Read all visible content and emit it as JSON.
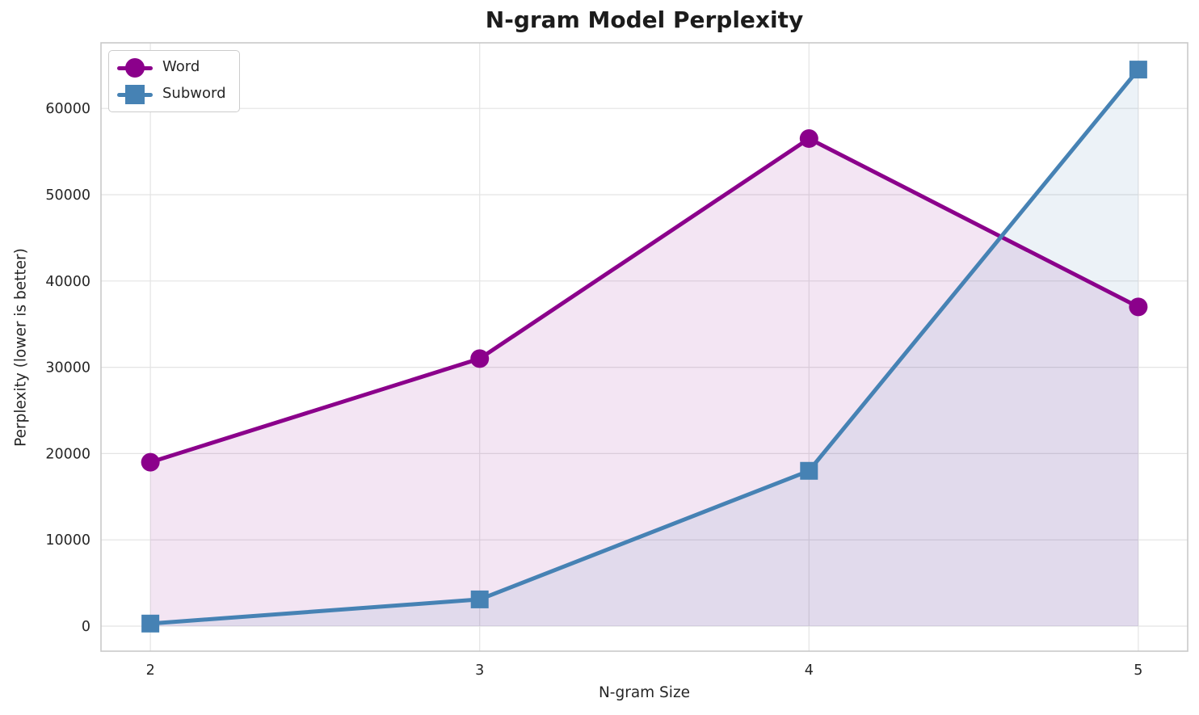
{
  "figure": {
    "title": "N-gram Model Perplexity",
    "xlabel": "N-gram Size",
    "ylabel": "Perplexity (lower is better)"
  },
  "chart_data": {
    "type": "line",
    "title": "N-gram Model Perplexity",
    "xlabel": "N-gram Size",
    "ylabel": "Perplexity (lower is better)",
    "x": [
      2,
      3,
      4,
      5
    ],
    "series": [
      {
        "name": "Word",
        "marker": "circle",
        "color": "#8B008B",
        "fill_alpha": 0.1,
        "values": [
          19000,
          31000,
          56500,
          37000
        ]
      },
      {
        "name": "Subword",
        "marker": "square",
        "color": "#4682B4",
        "fill_alpha": 0.1,
        "values": [
          300,
          3100,
          18000,
          64500
        ]
      }
    ],
    "xticks": [
      "2",
      "3",
      "4",
      "5"
    ],
    "yticks": [
      "0",
      "10000",
      "20000",
      "30000",
      "40000",
      "50000",
      "60000"
    ],
    "ytick_values": [
      0,
      10000,
      20000,
      30000,
      40000,
      50000,
      60000
    ],
    "xtick_values": [
      2,
      3,
      4,
      5
    ],
    "xlim": [
      1.85,
      5.15
    ],
    "ylim": [
      -2900,
      67600
    ],
    "grid": true,
    "legend_position": "upper left",
    "fill_baseline": 0,
    "grid_color": "#e4e4e4",
    "spine_color": "#c9c9c9",
    "text_color": "#262626"
  }
}
